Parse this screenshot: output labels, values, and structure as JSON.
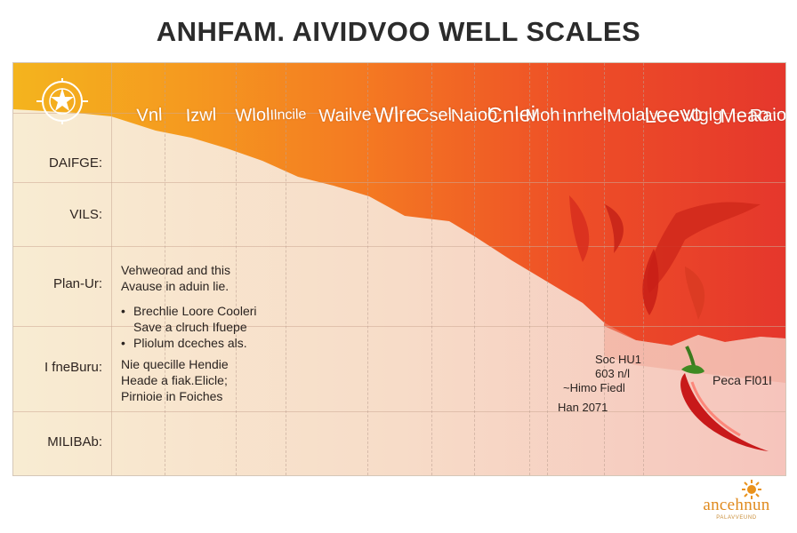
{
  "title": "ANHFAM. AIVIDVOO WELL SCALES",
  "colors": {
    "yellow": "#f4b41e",
    "orange": "#f47a22",
    "red": "#e5372c",
    "chili": "#c8191a"
  },
  "columns": [
    "Vnl",
    "Izwl",
    "Wlol",
    "Ilncile",
    "Wailve",
    "Wlre",
    "Csel",
    "Naiob",
    "Cnlei",
    "Moh",
    "Inrhel",
    "Molalv",
    "Leevo",
    "Vlglg",
    "Meao",
    "Raiob"
  ],
  "rows": [
    "DAIFGE:",
    "VILS:",
    "Plan-Ur:",
    "I fneBuru:",
    "MILIBAb:"
  ],
  "notes": {
    "block1": {
      "line1": "Vehweorad and this",
      "line2": "Avause in aduin lie.",
      "bullet1": "Brechlie Loore Cooleri",
      "bullet1b": "Save a clruch Ifuepe",
      "bullet2": "Pliolum dceches als."
    },
    "block2": {
      "line1": "Nie quecille Hendie",
      "line2": "Heade a fiak.Elicle;",
      "line3": "Pirnioie in Foiches"
    },
    "block3": {
      "line1": "Soc HU1",
      "line2": "603 n/l",
      "line3": "~Himo Fiedl",
      "line4": "Han 2071"
    },
    "chili_label": "Peca Fl01I"
  },
  "logo": {
    "text": "ancehnun",
    "sub": "PALAVVEUND"
  }
}
